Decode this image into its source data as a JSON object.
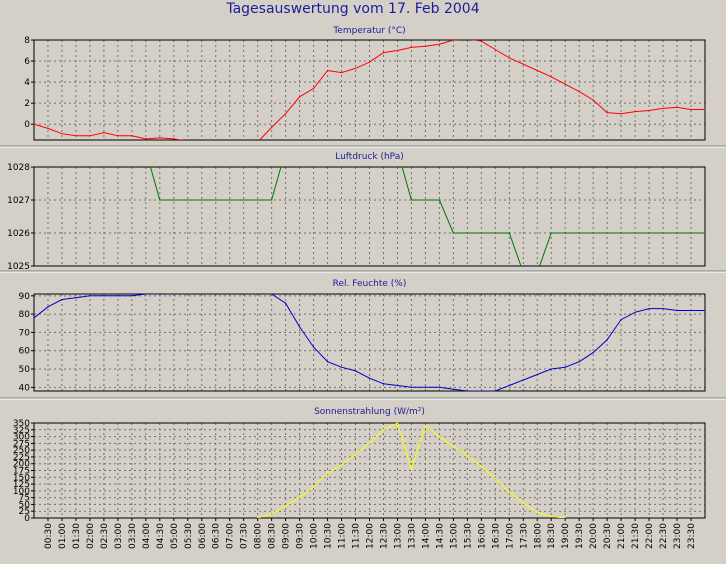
{
  "title": "Tagesauswertung vom 17. Feb 2004",
  "x_ticks": [
    "00:30",
    "01:00",
    "01:30",
    "02:00",
    "02:30",
    "03:00",
    "03:30",
    "04:00",
    "04:30",
    "05:00",
    "05:30",
    "06:00",
    "06:30",
    "07:00",
    "07:30",
    "08:00",
    "08:30",
    "09:00",
    "09:30",
    "10:00",
    "10:30",
    "11:00",
    "11:30",
    "12:00",
    "12:30",
    "13:00",
    "13:30",
    "14:00",
    "14:30",
    "15:00",
    "15:30",
    "16:00",
    "16:30",
    "17:00",
    "17:30",
    "18:00",
    "18:30",
    "19:00",
    "19:30",
    "20:00",
    "20:30",
    "21:00",
    "21:30",
    "22:00",
    "22:30",
    "23:00",
    "23:30"
  ],
  "colors": {
    "background": "#d4d0c8",
    "plot_bg": "#d4d0c8",
    "grid": "#6f6f6f",
    "title": "#1c1c9c"
  },
  "chart_data": [
    {
      "type": "line",
      "title": "Temperatur (°C)",
      "color": "#ff0000",
      "ylim": [
        -1.5,
        8
      ],
      "yticks": [
        0,
        2,
        4,
        6,
        8
      ],
      "grid": true,
      "x": [
        0.0,
        0.5,
        1.0,
        1.5,
        2.0,
        2.5,
        3.0,
        3.5,
        4.0,
        4.5,
        5.0,
        5.5,
        6.0,
        6.5,
        7.0,
        7.5,
        8.0,
        8.5,
        9.0,
        9.5,
        10.0,
        10.5,
        11.0,
        11.5,
        12.0,
        12.5,
        13.0,
        13.5,
        14.0,
        14.5,
        15.0,
        15.5,
        16.0,
        16.5,
        17.0,
        17.5,
        18.0,
        18.5,
        19.0,
        19.5,
        20.0,
        20.5,
        21.0,
        21.5,
        22.0,
        22.5,
        23.0,
        23.5,
        24.0
      ],
      "y": [
        0,
        -0.4,
        -0.9,
        -1.1,
        -1.1,
        -0.8,
        -1.1,
        -1.1,
        -1.4,
        -1.3,
        -1.4,
        -1.6,
        -1.9,
        -1.9,
        -1.6,
        -1.6,
        -1.7,
        -0.3,
        1.0,
        2.6,
        3.4,
        5.1,
        4.9,
        5.3,
        5.9,
        6.8,
        7.0,
        7.3,
        7.4,
        7.6,
        8.0,
        8.1,
        7.9,
        7.1,
        6.3,
        5.7,
        5.1,
        4.5,
        3.8,
        3.1,
        2.3,
        1.1,
        1.0,
        1.2,
        1.3,
        1.5,
        1.6,
        1.4,
        1.4
      ]
    },
    {
      "type": "line",
      "title": "Luftdruck (hPa)",
      "color": "#007700",
      "ylim": [
        1025,
        1028
      ],
      "yticks": [
        1025,
        1026,
        1027,
        1028
      ],
      "grid": true,
      "x": [
        0.0,
        4.0,
        4.5,
        8.5,
        9.0,
        13.0,
        13.5,
        14.5,
        15.0,
        17.0,
        17.5,
        18.0,
        18.5,
        24.0
      ],
      "y": [
        1028.5,
        1028.5,
        1027,
        1027,
        1028.5,
        1028.5,
        1027,
        1027,
        1026,
        1026,
        1024.8,
        1024.8,
        1026,
        1026
      ]
    },
    {
      "type": "line",
      "title": "Rel. Feuchte (%)",
      "color": "#0000cc",
      "ylim": [
        38,
        91
      ],
      "yticks": [
        40,
        50,
        60,
        70,
        80,
        90
      ],
      "grid": true,
      "x": [
        0.0,
        0.5,
        1.0,
        1.5,
        2.0,
        2.5,
        3.0,
        3.5,
        4.0,
        8.0,
        8.5,
        9.0,
        9.5,
        10.0,
        10.5,
        11.0,
        11.5,
        12.0,
        12.5,
        13.0,
        13.5,
        14.0,
        14.5,
        15.0,
        15.5,
        16.0,
        16.5,
        17.0,
        17.5,
        18.0,
        18.5,
        19.0,
        19.5,
        20.0,
        20.5,
        21.0,
        21.5,
        22.0,
        22.5,
        23.0,
        23.5,
        24.0
      ],
      "y": [
        78,
        84,
        88,
        89,
        90,
        90,
        90,
        90,
        91,
        92,
        91,
        86,
        73,
        62,
        54,
        51,
        49,
        45,
        42,
        41,
        40,
        40,
        40,
        39,
        38,
        38,
        38,
        41,
        44,
        47,
        50,
        51,
        54,
        59,
        66,
        77,
        81,
        83,
        83,
        82,
        82,
        82
      ]
    },
    {
      "type": "line",
      "title": "Sonnenstrahlung (W/m²)",
      "color": "#ffff00",
      "ylim": [
        0,
        350
      ],
      "yticks": [
        0,
        25,
        50,
        75,
        100,
        125,
        150,
        175,
        200,
        225,
        250,
        275,
        300,
        325,
        350
      ],
      "grid": true,
      "x": [
        8.0,
        8.5,
        9.0,
        9.5,
        10.0,
        10.5,
        11.0,
        11.5,
        12.0,
        12.5,
        13.0,
        13.5,
        14.0,
        14.5,
        15.0,
        15.5,
        16.0,
        16.5,
        17.0,
        17.5,
        18.0,
        18.5,
        19.0
      ],
      "y": [
        0,
        15,
        45,
        75,
        115,
        165,
        195,
        235,
        275,
        325,
        350,
        180,
        340,
        300,
        265,
        230,
        190,
        145,
        95,
        55,
        20,
        5,
        0
      ]
    }
  ]
}
